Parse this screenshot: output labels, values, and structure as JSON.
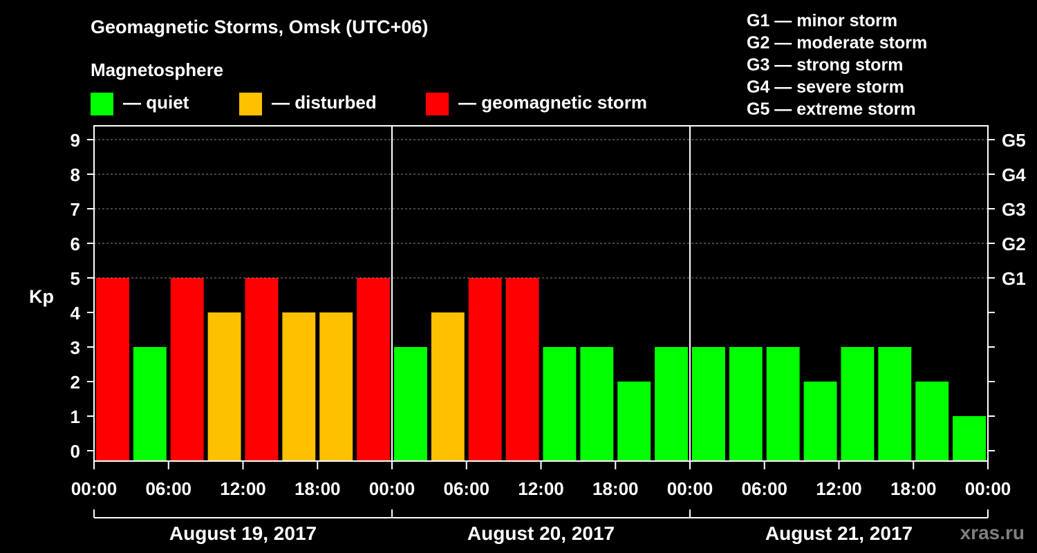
{
  "chart_data": {
    "type": "bar",
    "title": "Geomagnetic Storms, Omsk (UTC+06)",
    "ylabel": "Kp",
    "ylim": [
      0,
      9
    ],
    "yticks": [
      "0",
      "1",
      "2",
      "3",
      "4",
      "5",
      "6",
      "7",
      "8",
      "9"
    ],
    "right_axis": [
      {
        "kp": 5,
        "label": "G1"
      },
      {
        "kp": 6,
        "label": "G2"
      },
      {
        "kp": 7,
        "label": "G3"
      },
      {
        "kp": 8,
        "label": "G4"
      },
      {
        "kp": 9,
        "label": "G5"
      }
    ],
    "time_ticks": [
      "00:00",
      "06:00",
      "12:00",
      "18:00",
      "00:00",
      "06:00",
      "12:00",
      "18:00",
      "00:00",
      "06:00",
      "12:00",
      "18:00",
      "00:00"
    ],
    "days": [
      "August 19, 2017",
      "August 20, 2017",
      "August 21, 2017"
    ],
    "values": [
      5,
      3,
      5,
      4,
      5,
      4,
      4,
      5,
      3,
      4,
      5,
      5,
      3,
      3,
      2,
      3,
      3,
      3,
      3,
      2,
      3,
      3,
      2,
      1
    ],
    "status_thresholds": {
      "disturbed": 4,
      "storm": 5
    }
  },
  "legend": {
    "heading": "Magnetosphere",
    "items": [
      {
        "key": "quiet",
        "label": "— quiet",
        "color": "#00ff00"
      },
      {
        "key": "disturbed",
        "label": "— disturbed",
        "color": "#ffc000"
      },
      {
        "key": "storm",
        "label": "— geomagnetic storm",
        "color": "#ff0000"
      }
    ]
  },
  "g_scale": [
    "G1 — minor storm",
    "G2 — moderate storm",
    "G3 — strong storm",
    "G4 — severe storm",
    "G5 — extreme storm"
  ],
  "watermark": "xras.ru"
}
